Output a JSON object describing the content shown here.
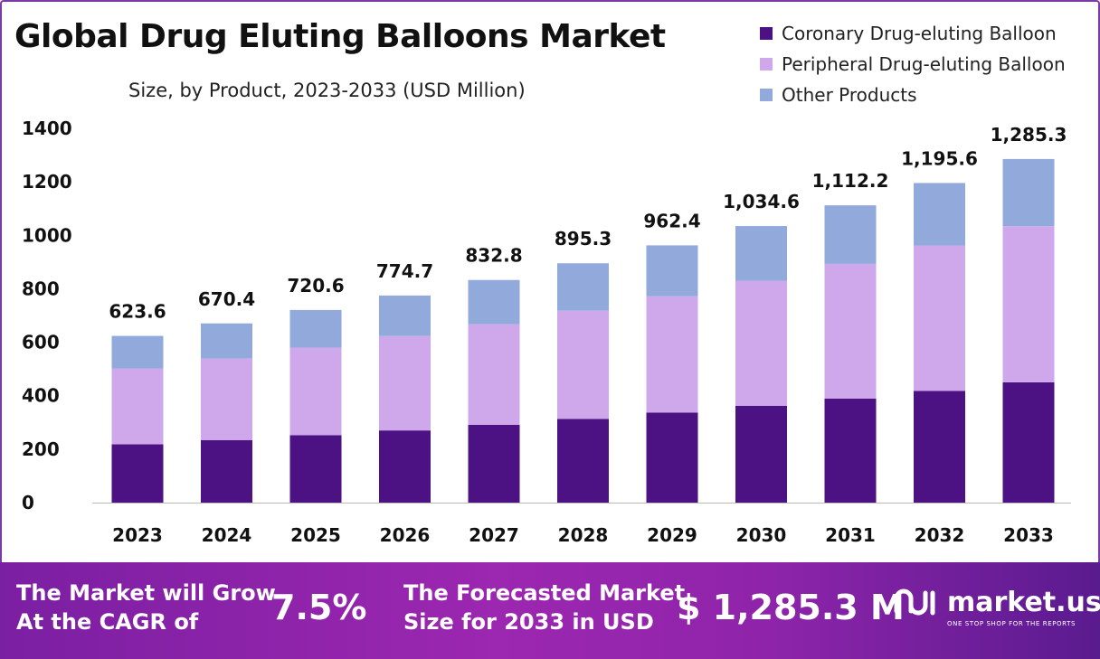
{
  "title": "Global Drug Eluting Balloons Market",
  "subtitle": "Size, by Product, 2023-2033 (USD Million)",
  "colors": {
    "coronary": "#4c1183",
    "peripheral": "#cfa8ec",
    "other": "#92aadb",
    "banner": "#8e24aa"
  },
  "chart_data": {
    "type": "bar",
    "stacked": true,
    "categories": [
      "2023",
      "2024",
      "2025",
      "2026",
      "2027",
      "2028",
      "2029",
      "2030",
      "2031",
      "2032",
      "2033"
    ],
    "series": [
      {
        "name": "Coronary Drug-eluting Balloon",
        "values": [
          218,
          234,
          252,
          270,
          291,
          313,
          337,
          362,
          389,
          418,
          450
        ]
      },
      {
        "name": "Peripheral Drug-eluting Balloon",
        "values": [
          284,
          305,
          328,
          353,
          376,
          405,
          435,
          468,
          504,
          544,
          584
        ]
      },
      {
        "name": "Other Products",
        "values": [
          121.6,
          131.4,
          140.6,
          151.7,
          165.8,
          177.3,
          190.4,
          204.6,
          219.2,
          233.6,
          251.3
        ]
      }
    ],
    "totals": [
      "623.6",
      "670.4",
      "720.6",
      "774.7",
      "832.8",
      "895.3",
      "962.4",
      "1,034.6",
      "1,112.2",
      "1,195.6",
      "1,285.3"
    ],
    "yticks": [
      "0",
      "200",
      "400",
      "600",
      "800",
      "1000",
      "1200",
      "1400"
    ],
    "ylim": [
      0,
      1400
    ],
    "legend_position": "top-right",
    "grid": false
  },
  "banner": {
    "cagr_text_line1": "The Market will Grow",
    "cagr_text_line2": "At the CAGR of",
    "cagr_value": "7.5%",
    "forecast_text_line1": "The Forecasted Market",
    "forecast_text_line2": "Size for 2033 in USD",
    "forecast_value": "$ 1,285.3 M",
    "brand": "market.us",
    "tagline": "ONE STOP SHOP FOR THE REPORTS",
    "brand_icon": "market-us-logo-icon"
  }
}
